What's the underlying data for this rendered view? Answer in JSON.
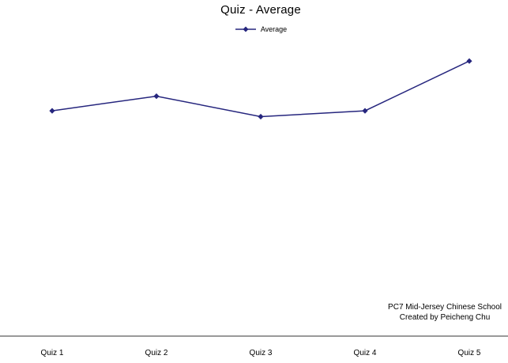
{
  "chart_data": {
    "type": "line",
    "title": "Quiz - Average",
    "categories": [
      "Quiz 1",
      "Quiz 2",
      "Quiz 3",
      "Quiz 4",
      "Quiz 5"
    ],
    "series": [
      {
        "name": "Average",
        "values": [
          77,
          82,
          75,
          77,
          94
        ],
        "color": "#26267E",
        "marker": "diamond"
      }
    ],
    "xlabel": "",
    "ylabel": "",
    "ylim": [
      0,
      100
    ],
    "y_axis_visible": false,
    "grid": false,
    "legend_position": "top-center",
    "axis_line_color": "#333333",
    "annotations": [
      "PC7 Mid-Jersey Chinese School",
      "Created by Peicheng Chu"
    ]
  }
}
